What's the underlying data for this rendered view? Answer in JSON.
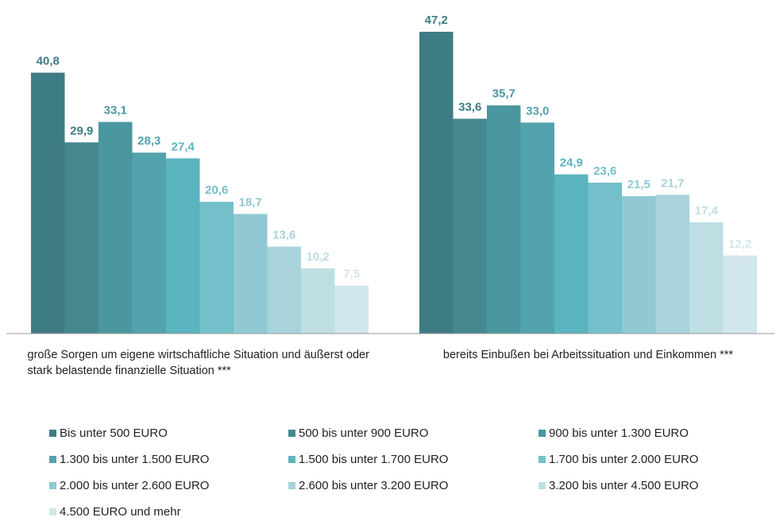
{
  "chart_data": {
    "type": "bar",
    "categories": [
      "große Sorgen um eigene wirtschaftliche Situation und äußerst oder stark belastende finanzielle Situation ***",
      "bereits Einbußen bei Arbeitssituation und Einkommen ***"
    ],
    "series": [
      {
        "name": "Bis unter 500 EURO",
        "color": "#3e7c84",
        "values": [
          40.8,
          47.2
        ],
        "value_labels": [
          "40,8",
          "47,2"
        ]
      },
      {
        "name": "500 bis unter 900 EURO",
        "color": "#45888f",
        "values": [
          29.9,
          33.6
        ],
        "value_labels": [
          "29,9",
          "33,6"
        ]
      },
      {
        "name": "900 bis unter 1.300 EURO",
        "color": "#4b97a0",
        "values": [
          33.1,
          35.7
        ],
        "value_labels": [
          "33,1",
          "35,7"
        ]
      },
      {
        "name": "1.300 bis unter 1.500 EURO",
        "color": "#52a3ad",
        "values": [
          28.3,
          33.0
        ],
        "value_labels": [
          "28,3",
          "33,0"
        ]
      },
      {
        "name": "1.500 bis unter 1.700 EURO",
        "color": "#5ab4bf",
        "values": [
          27.4,
          24.9
        ],
        "value_labels": [
          "27,4",
          "24,9"
        ]
      },
      {
        "name": "1.700 bis unter 2.000 EURO",
        "color": "#73c0ca",
        "values": [
          20.6,
          23.6
        ],
        "value_labels": [
          "20,6",
          "23,6"
        ]
      },
      {
        "name": "2.000 bis unter 2.600 EURO",
        "color": "#90c9d3",
        "values": [
          18.7,
          21.5
        ],
        "value_labels": [
          "18,7",
          "21,5"
        ]
      },
      {
        "name": "2.600 bis unter 3.200 EURO",
        "color": "#a8d3db",
        "values": [
          13.6,
          21.7
        ],
        "value_labels": [
          "13,6",
          "21,7"
        ]
      },
      {
        "name": "3.200 bis unter 4.500 EURO",
        "color": "#bedee4",
        "values": [
          10.2,
          17.4
        ],
        "value_labels": [
          "10,2",
          "17,4"
        ]
      },
      {
        "name": "4.500 EURO und mehr",
        "color": "#d2e7eb",
        "values": [
          7.5,
          12.2
        ],
        "value_labels": [
          "7,5",
          "12,2"
        ]
      }
    ]
  }
}
